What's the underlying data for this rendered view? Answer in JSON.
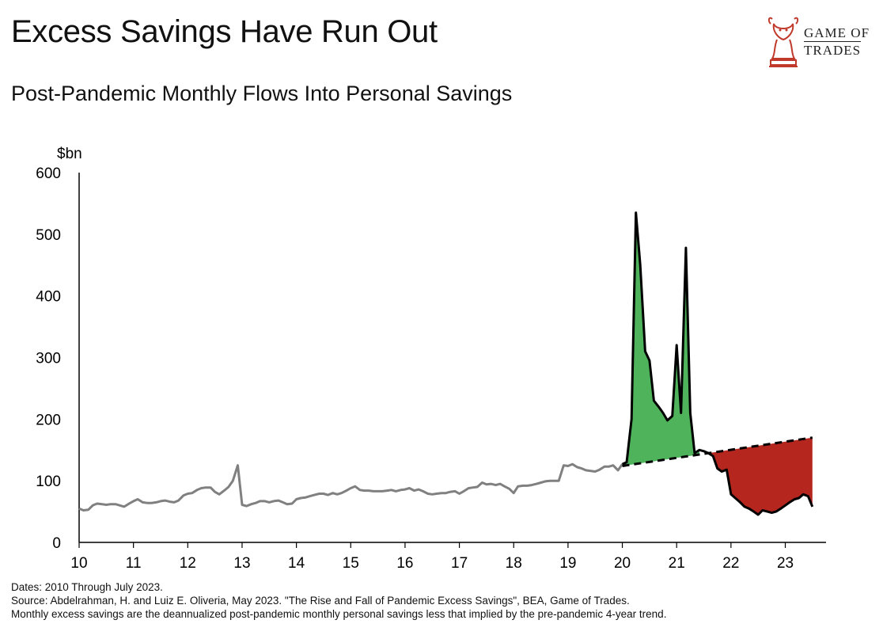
{
  "title": "Excess Savings Have Run Out",
  "subtitle": "Post-Pandemic Monthly Flows Into Personal Savings",
  "logo": {
    "line1": "GAME OF",
    "line2": "TRADES",
    "color": "#c0392b"
  },
  "footer": {
    "line1": "Dates: 2010 Through July 2023.",
    "line2": "Source: Abdelrahman, H. and Luiz E. Oliveria, May 2023. \"The Rise and Fall of Pandemic Excess Savings\", BEA, Game of Trades.",
    "line3": "Monthly excess savings are the deannualized post-pandemic monthly personal savings less that implied by the pre-pandemic 4-year trend."
  },
  "chart_data": {
    "type": "line",
    "ylabel": "$bn",
    "ylim": [
      0,
      600
    ],
    "yticks": [
      "0",
      "100",
      "200",
      "300",
      "400",
      "500",
      "600"
    ],
    "xticks": [
      "10",
      "11",
      "12",
      "13",
      "14",
      "15",
      "16",
      "17",
      "18",
      "19",
      "20",
      "21",
      "22",
      "23"
    ],
    "colors": {
      "line": "#808080",
      "pandemic_line": "#000000",
      "excess_fill": "#4fb35c",
      "drawdown_fill": "#b5261e",
      "trend": "#000000"
    },
    "series": [
      {
        "key": "savings",
        "x": [
          2010.0,
          2010.08,
          2010.17,
          2010.25,
          2010.33,
          2010.42,
          2010.5,
          2010.58,
          2010.67,
          2010.75,
          2010.83,
          2010.92,
          2011.0,
          2011.08,
          2011.17,
          2011.25,
          2011.33,
          2011.42,
          2011.5,
          2011.58,
          2011.67,
          2011.75,
          2011.83,
          2011.92,
          2012.0,
          2012.08,
          2012.17,
          2012.25,
          2012.33,
          2012.42,
          2012.5,
          2012.58,
          2012.67,
          2012.75,
          2012.83,
          2012.92,
          2013.0,
          2013.08,
          2013.17,
          2013.25,
          2013.33,
          2013.42,
          2013.5,
          2013.58,
          2013.67,
          2013.75,
          2013.83,
          2013.92,
          2014.0,
          2014.08,
          2014.17,
          2014.25,
          2014.33,
          2014.42,
          2014.5,
          2014.58,
          2014.67,
          2014.75,
          2014.83,
          2014.92,
          2015.0,
          2015.08,
          2015.17,
          2015.25,
          2015.33,
          2015.42,
          2015.5,
          2015.58,
          2015.67,
          2015.75,
          2015.83,
          2015.92,
          2016.0,
          2016.08,
          2016.17,
          2016.25,
          2016.33,
          2016.42,
          2016.5,
          2016.58,
          2016.67,
          2016.75,
          2016.83,
          2016.92,
          2017.0,
          2017.08,
          2017.17,
          2017.25,
          2017.33,
          2017.42,
          2017.5,
          2017.58,
          2017.67,
          2017.75,
          2017.83,
          2017.92,
          2018.0,
          2018.08,
          2018.17,
          2018.25,
          2018.33,
          2018.42,
          2018.5,
          2018.58,
          2018.67,
          2018.75,
          2018.83,
          2018.92,
          2019.0,
          2019.08,
          2019.17,
          2019.25,
          2019.33,
          2019.42,
          2019.5,
          2019.58,
          2019.67,
          2019.75,
          2019.83,
          2019.92,
          2020.0,
          2020.08,
          2020.17,
          2020.25,
          2020.33,
          2020.42,
          2020.5,
          2020.58,
          2020.67,
          2020.75,
          2020.83,
          2020.92,
          2021.0,
          2021.08,
          2021.17,
          2021.25,
          2021.33,
          2021.42,
          2021.5,
          2021.58,
          2021.67,
          2021.75,
          2021.83,
          2021.92,
          2022.0,
          2022.08,
          2022.17,
          2022.25,
          2022.33,
          2022.42,
          2022.5,
          2022.58,
          2022.67,
          2022.75,
          2022.83,
          2022.92,
          2023.0,
          2023.08,
          2023.17,
          2023.25,
          2023.33,
          2023.42,
          2023.5
        ],
        "y": [
          55,
          52,
          53,
          60,
          63,
          62,
          61,
          62,
          62,
          60,
          58,
          63,
          67,
          70,
          65,
          64,
          64,
          65,
          67,
          68,
          66,
          65,
          68,
          76,
          79,
          80,
          85,
          88,
          89,
          89,
          82,
          78,
          84,
          90,
          100,
          125,
          61,
          59,
          62,
          64,
          67,
          67,
          65,
          67,
          68,
          65,
          62,
          63,
          70,
          72,
          73,
          75,
          77,
          79,
          79,
          77,
          80,
          78,
          80,
          84,
          88,
          91,
          85,
          84,
          84,
          83,
          83,
          83,
          84,
          85,
          83,
          85,
          86,
          88,
          84,
          86,
          83,
          79,
          78,
          79,
          80,
          80,
          82,
          83,
          79,
          83,
          88,
          89,
          90,
          97,
          94,
          95,
          93,
          95,
          91,
          87,
          80,
          91,
          92,
          92,
          93,
          95,
          97,
          99,
          100,
          100,
          100,
          125,
          124,
          127,
          122,
          120,
          117,
          116,
          115,
          118,
          123,
          123,
          125,
          117,
          127,
          130,
          200,
          535,
          450,
          310,
          295,
          230,
          220,
          210,
          198,
          205,
          320,
          210,
          478,
          210,
          145,
          150,
          148,
          145,
          140,
          120,
          115,
          118,
          78,
          72,
          65,
          58,
          55,
          50,
          45,
          52,
          50,
          48,
          50,
          55,
          60,
          65,
          70,
          72,
          78,
          75,
          58
        ]
      },
      {
        "key": "trend",
        "x": [
          2020.0,
          2023.5
        ],
        "y": [
          124,
          170
        ]
      }
    ]
  }
}
